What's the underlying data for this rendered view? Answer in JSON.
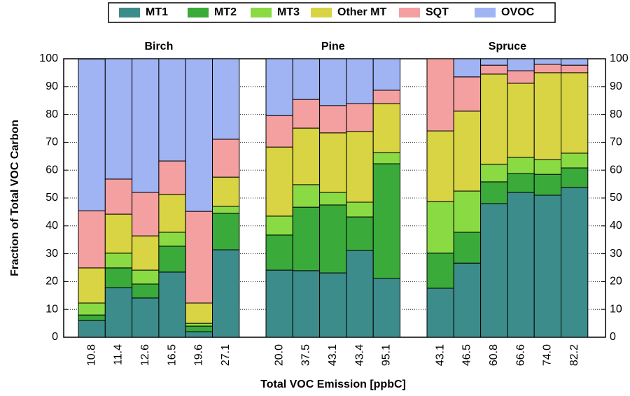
{
  "chart_data": {
    "type": "stacked_bar",
    "xlabel": "Total VOC Emission [ppbC]",
    "ylabel": "Fraction of Total VOC Carbon",
    "ylim": [
      0,
      100
    ],
    "yticks": [
      0,
      10,
      20,
      30,
      40,
      50,
      60,
      70,
      80,
      90,
      100
    ],
    "y2lim": [
      0,
      100
    ],
    "y2ticks": [
      0,
      10,
      20,
      30,
      40,
      50,
      60,
      70,
      80,
      90,
      100
    ],
    "grid": true,
    "series": [
      {
        "name": "MT1",
        "color": "#3d8c8c"
      },
      {
        "name": "MT2",
        "color": "#3aaa3a"
      },
      {
        "name": "MT3",
        "color": "#8ada44"
      },
      {
        "name": "Other MT",
        "color": "#d8d444"
      },
      {
        "name": "SQT",
        "color": "#f4a0a0"
      },
      {
        "name": "OVOC",
        "color": "#a0b4f4"
      }
    ],
    "panels": [
      {
        "title": "Birch",
        "categories": [
          "10.8",
          "11.4",
          "12.6",
          "16.5",
          "19.6",
          "27.1"
        ],
        "values": [
          [
            6,
            17.8,
            14.1,
            23.4,
            2,
            31.4
          ],
          [
            2,
            7.1,
            5,
            9.3,
            2,
            13.1
          ],
          [
            4.3,
            5.3,
            5,
            5,
            1,
            2.5
          ],
          [
            12.6,
            14,
            12.3,
            13.6,
            7.3,
            10.5
          ],
          [
            20.5,
            12.6,
            15.6,
            12,
            32.9,
            13.6
          ],
          [
            54.5,
            43.2,
            48,
            36.7,
            54.8,
            28.9
          ]
        ]
      },
      {
        "title": "Pine",
        "categories": [
          "20.0",
          "37.5",
          "43.1",
          "43.4",
          "95.1"
        ],
        "values": [
          [
            24.1,
            23.9,
            23.1,
            31.2,
            21.1
          ],
          [
            12.6,
            22.8,
            24.4,
            12,
            41.2
          ],
          [
            6.8,
            8.1,
            4.5,
            5.3,
            4
          ],
          [
            24.8,
            20.3,
            21.4,
            25.4,
            17.6
          ],
          [
            11.3,
            10.3,
            9.8,
            10,
            4.8
          ],
          [
            20.4,
            14.6,
            16.8,
            16.1,
            11.3
          ]
        ]
      },
      {
        "title": "Spruce",
        "categories": [
          "43.1",
          "46.5",
          "60.8",
          "66.6",
          "74.0",
          "82.2"
        ],
        "values": [
          [
            17.6,
            26.6,
            48,
            52,
            51,
            53.8
          ],
          [
            12.6,
            11.1,
            7.8,
            6.8,
            7.5,
            7
          ],
          [
            18.5,
            14.8,
            6.3,
            5.8,
            5.3,
            5.3
          ],
          [
            25.4,
            28.7,
            32.4,
            26.6,
            31.2,
            28.9
          ],
          [
            25.9,
            12.3,
            3.2,
            4.5,
            3,
            2.7
          ],
          [
            0,
            6.5,
            2.3,
            4.3,
            2,
            2.3
          ]
        ]
      }
    ]
  }
}
